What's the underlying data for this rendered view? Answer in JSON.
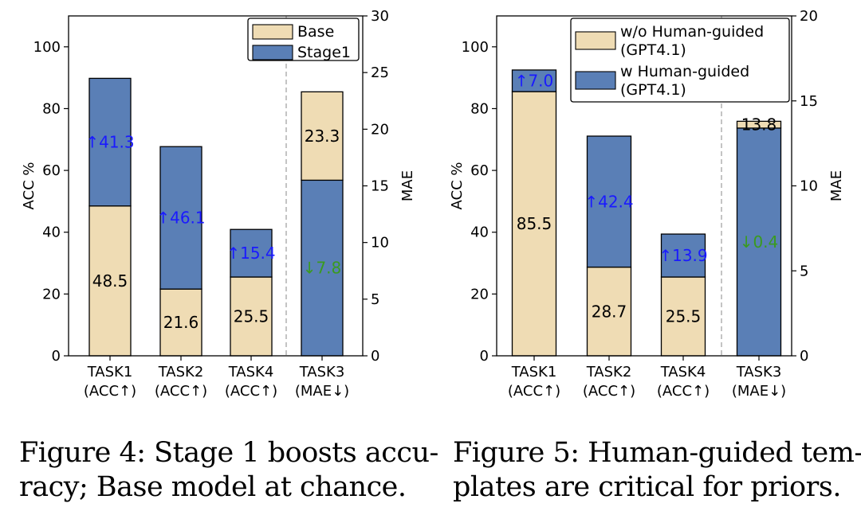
{
  "colors": {
    "base": "#efdcb4",
    "stage": "#5a7fb6",
    "increase": "#1a1aff",
    "decrease": "#3a9b1f",
    "edge": "#000000"
  },
  "chart_data": [
    {
      "type": "bar",
      "stacked": true,
      "categories": [
        [
          "TASK1",
          "(ACC↑)"
        ],
        [
          "TASK2",
          "(ACC↑)"
        ],
        [
          "TASK4",
          "(ACC↑)"
        ],
        [
          "TASK3",
          "(MAE↓)"
        ]
      ],
      "bars": [
        {
          "axis": "left",
          "bottom": 48.5,
          "total": 89.8,
          "bottom_color": "base",
          "top_color": "stage",
          "bottom_label": "48.5",
          "top_label": "↑41.3",
          "top_label_color": "increase"
        },
        {
          "axis": "left",
          "bottom": 21.6,
          "total": 67.7,
          "bottom_color": "base",
          "top_color": "stage",
          "bottom_label": "21.6",
          "top_label": "↑46.1",
          "top_label_color": "increase"
        },
        {
          "axis": "left",
          "bottom": 25.5,
          "total": 40.9,
          "bottom_color": "base",
          "top_color": "stage",
          "bottom_label": "25.5",
          "top_label": "↑15.4",
          "top_label_color": "increase"
        },
        {
          "axis": "right",
          "bottom": 15.5,
          "total": 23.3,
          "bottom_color": "stage",
          "top_color": "base",
          "bottom_label": "↓7.8",
          "bottom_label_color": "decrease",
          "top_label": "23.3"
        }
      ],
      "ylabel": "ACC %",
      "ylim": [
        0,
        110
      ],
      "yticks": [
        0,
        20,
        40,
        60,
        80,
        100
      ],
      "y2label": "MAE",
      "y2lim": [
        0,
        30
      ],
      "y2ticks": [
        0,
        5,
        10,
        15,
        20,
        25,
        30
      ],
      "legend": {
        "position": "top-right",
        "entries": [
          {
            "label": "Base",
            "color": "base"
          },
          {
            "label": "Stage1",
            "color": "stage"
          }
        ]
      },
      "separator_after_index": 2
    },
    {
      "type": "bar",
      "stacked": true,
      "categories": [
        [
          "TASK1",
          "(ACC↑)"
        ],
        [
          "TASK2",
          "(ACC↑)"
        ],
        [
          "TASK4",
          "(ACC↑)"
        ],
        [
          "TASK3",
          "(MAE↓)"
        ]
      ],
      "bars": [
        {
          "axis": "left",
          "bottom": 85.5,
          "total": 92.5,
          "bottom_color": "base",
          "top_color": "stage",
          "bottom_label": "85.5",
          "top_label": "↑7.0",
          "top_label_color": "increase"
        },
        {
          "axis": "left",
          "bottom": 28.7,
          "total": 71.1,
          "bottom_color": "base",
          "top_color": "stage",
          "bottom_label": "28.7",
          "top_label": "↑42.4",
          "top_label_color": "increase"
        },
        {
          "axis": "left",
          "bottom": 25.5,
          "total": 39.4,
          "bottom_color": "base",
          "top_color": "stage",
          "bottom_label": "25.5",
          "top_label": "↑13.9",
          "top_label_color": "increase"
        },
        {
          "axis": "right",
          "bottom": 13.4,
          "total": 13.8,
          "bottom_color": "stage",
          "top_color": "base",
          "bottom_label": "↓0.4",
          "bottom_label_color": "decrease",
          "top_label": "13.8"
        }
      ],
      "ylabel": "ACC %",
      "ylim": [
        0,
        110
      ],
      "yticks": [
        0,
        20,
        40,
        60,
        80,
        100
      ],
      "y2label": "MAE",
      "y2lim": [
        0,
        20
      ],
      "y2ticks": [
        0,
        5,
        10,
        15,
        20
      ],
      "legend": {
        "position": "top-right",
        "entries": [
          {
            "label": "w/o Human-guided\n(GPT4.1)",
            "color": "base"
          },
          {
            "label": "w Human-guided\n(GPT4.1)",
            "color": "stage"
          }
        ]
      },
      "separator_after_index": 2
    }
  ],
  "captions": [
    {
      "lines": [
        "Figure 4: Stage 1 boosts accu-",
        "racy; Base model at chance."
      ]
    },
    {
      "lines": [
        "Figure 5: Human-guided tem-",
        "plates are critical for priors."
      ]
    }
  ]
}
